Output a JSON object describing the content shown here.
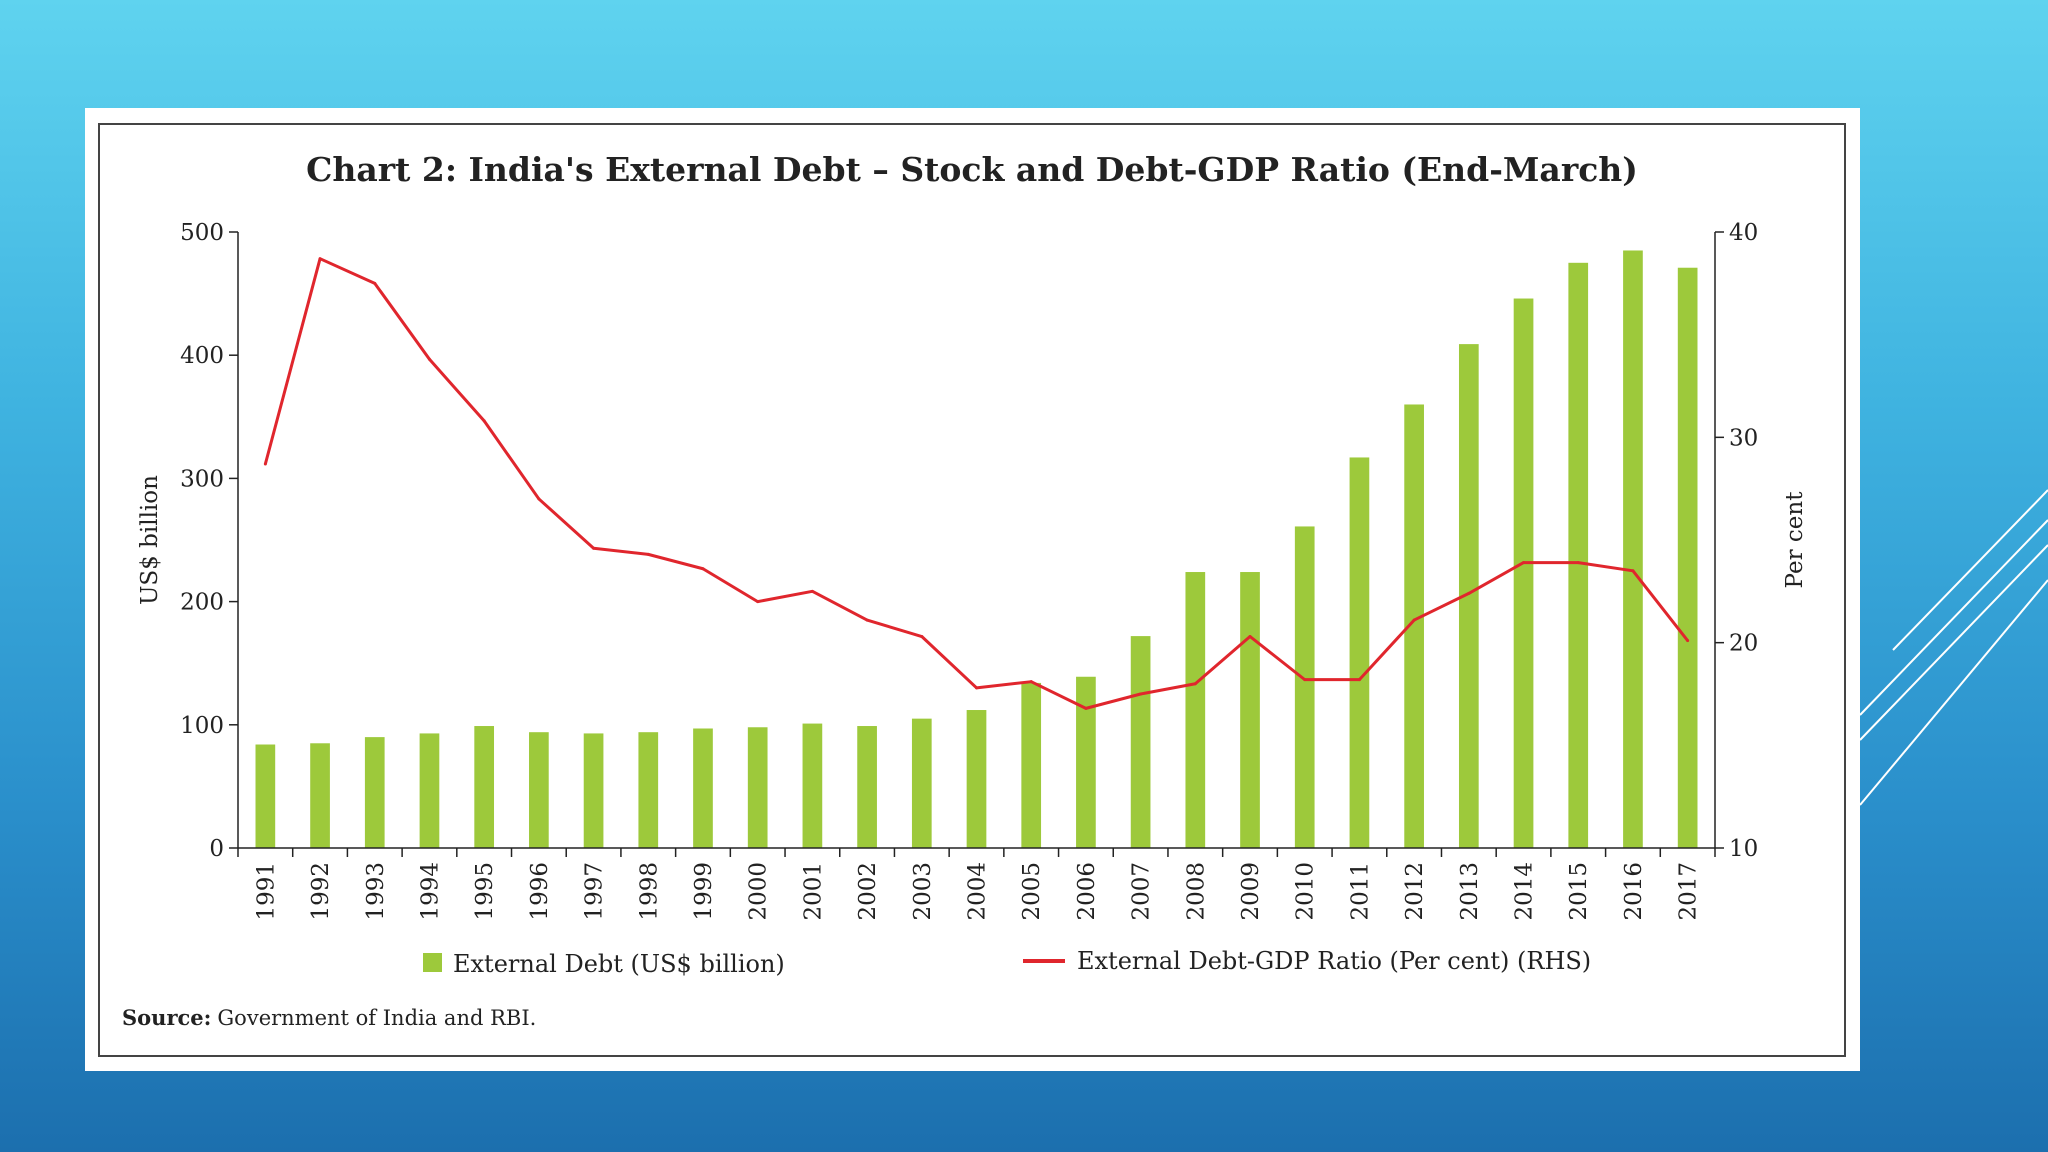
{
  "colors": {
    "bar": "#9dc93b",
    "line": "#e0262d",
    "frame": "#444444",
    "panel": "#ffffff"
  },
  "decor": {
    "slide_lines_icon": "diagonal-lines-decoration"
  },
  "chart_data": {
    "type": "bar",
    "title": "Chart 2: India's External Debt – Stock and Debt-GDP Ratio (End-March)",
    "categories": [
      "1991",
      "1992",
      "1993",
      "1994",
      "1995",
      "1996",
      "1997",
      "1998",
      "1999",
      "2000",
      "2001",
      "2002",
      "2003",
      "2004",
      "2005",
      "2006",
      "2007",
      "2008",
      "2009",
      "2010",
      "2011",
      "2012",
      "2013",
      "2014",
      "2015",
      "2016",
      "2017"
    ],
    "series": [
      {
        "name": "External Debt (US$ billion)",
        "type": "bar",
        "axis": "left",
        "values": [
          84,
          85,
          90,
          93,
          99,
          94,
          93,
          94,
          97,
          98,
          101,
          99,
          105,
          112,
          134,
          139,
          172,
          224,
          224,
          261,
          317,
          360,
          409,
          446,
          475,
          485,
          471
        ]
      },
      {
        "name": "External Debt-GDP Ratio (Per cent) (RHS)",
        "type": "line",
        "axis": "right",
        "values": [
          28.7,
          38.7,
          37.5,
          33.8,
          30.8,
          27.0,
          24.6,
          24.3,
          23.6,
          22.0,
          22.5,
          21.1,
          20.3,
          17.8,
          18.1,
          16.8,
          17.5,
          18.0,
          20.3,
          18.2,
          18.2,
          21.1,
          22.4,
          23.9,
          23.9,
          23.5,
          20.1
        ]
      }
    ],
    "ylabel": "US$ billion",
    "ylabel_right": "Per cent",
    "ylim": [
      0,
      500
    ],
    "ylim_right": [
      10,
      40
    ],
    "yticks": [
      0,
      100,
      200,
      300,
      400,
      500
    ],
    "yticks_right": [
      10,
      20,
      30,
      40
    ],
    "grid": false,
    "legend_position": "bottom",
    "source_label": "Source:",
    "source_text": "Government of India and RBI."
  }
}
